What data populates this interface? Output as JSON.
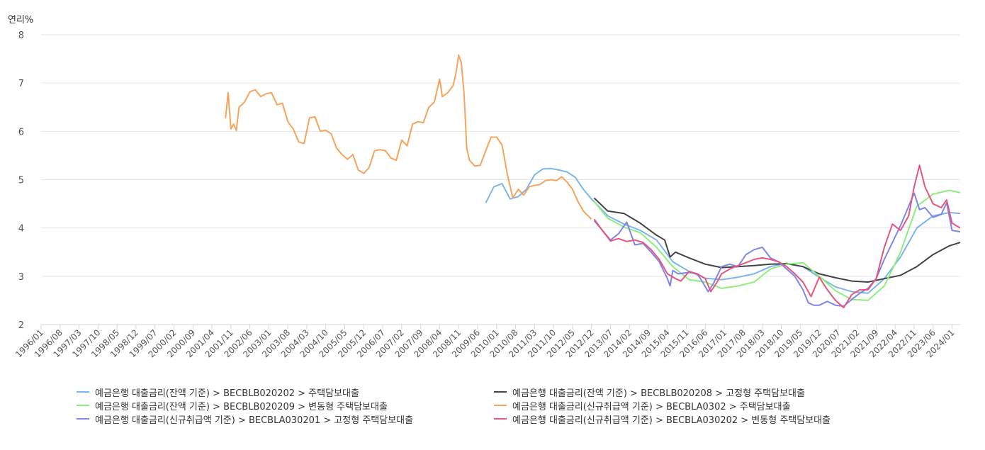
{
  "chart_data": {
    "type": "line",
    "ylabel": "연리%",
    "ylim": [
      2,
      8
    ],
    "yticks": [
      2,
      3,
      4,
      5,
      6,
      7,
      8
    ],
    "xlim": [
      "1996-01",
      "2024-04"
    ],
    "xticks": [
      "1996/01",
      "1996/08",
      "1997/03",
      "1997/10",
      "1998/05",
      "1998/12",
      "1999/07",
      "2000/02",
      "2000/09",
      "2001/04",
      "2001/11",
      "2002/06",
      "2003/01",
      "2003/08",
      "2004/03",
      "2004/10",
      "2005/05",
      "2005/12",
      "2006/07",
      "2007/02",
      "2007/09",
      "2008/04",
      "2008/11",
      "2009/06",
      "2010/01",
      "2010/08",
      "2011/03",
      "2011/10",
      "2012/05",
      "2012/12",
      "2013/07",
      "2014/02",
      "2014/09",
      "2015/04",
      "2015/11",
      "2016/06",
      "2017/01",
      "2017/08",
      "2018/03",
      "2018/10",
      "2019/05",
      "2019/12",
      "2020/07",
      "2021/02",
      "2021/09",
      "2022/04",
      "2022/11",
      "2023/06",
      "2024/01"
    ],
    "grid": true,
    "legend": "bottom",
    "series": [
      {
        "name": "예금은행 대출금리(잔액 기준) > BECBLB020202 > 주택담보대출",
        "color": "#7cb5ec",
        "points": [
          [
            "2009-09",
            4.52
          ],
          [
            "2009-12",
            4.85
          ],
          [
            "2010-03",
            4.92
          ],
          [
            "2010-06",
            4.6
          ],
          [
            "2010-09",
            4.65
          ],
          [
            "2010-12",
            4.8
          ],
          [
            "2011-03",
            5.1
          ],
          [
            "2011-06",
            5.22
          ],
          [
            "2011-09",
            5.23
          ],
          [
            "2011-12",
            5.2
          ],
          [
            "2012-03",
            5.16
          ],
          [
            "2012-06",
            5.05
          ],
          [
            "2012-09",
            4.8
          ],
          [
            "2012-12",
            4.6
          ],
          [
            "2013-06",
            4.25
          ],
          [
            "2013-12",
            4.08
          ],
          [
            "2014-06",
            3.95
          ],
          [
            "2014-12",
            3.75
          ],
          [
            "2015-06",
            3.3
          ],
          [
            "2015-12",
            3.1
          ],
          [
            "2016-06",
            2.96
          ],
          [
            "2016-12",
            2.93
          ],
          [
            "2017-06",
            2.98
          ],
          [
            "2017-12",
            3.05
          ],
          [
            "2018-06",
            3.2
          ],
          [
            "2018-12",
            3.27
          ],
          [
            "2019-06",
            3.2
          ],
          [
            "2019-12",
            2.98
          ],
          [
            "2020-06",
            2.78
          ],
          [
            "2020-12",
            2.68
          ],
          [
            "2021-06",
            2.65
          ],
          [
            "2021-12",
            2.95
          ],
          [
            "2022-06",
            3.4
          ],
          [
            "2022-12",
            4.0
          ],
          [
            "2023-06",
            4.25
          ],
          [
            "2023-12",
            4.32
          ],
          [
            "2024-04",
            4.3
          ]
        ]
      },
      {
        "name": "예금은행 대출금리(잔액 기준) > BECBLB020208 > 고정형 주택담보대출",
        "color": "#434348",
        "points": [
          [
            "2013-01",
            4.62
          ],
          [
            "2013-06",
            4.35
          ],
          [
            "2013-12",
            4.3
          ],
          [
            "2014-06",
            4.1
          ],
          [
            "2014-12",
            3.85
          ],
          [
            "2015-03",
            3.75
          ],
          [
            "2015-05",
            3.4
          ],
          [
            "2015-07",
            3.5
          ],
          [
            "2015-12",
            3.38
          ],
          [
            "2016-06",
            3.25
          ],
          [
            "2016-12",
            3.18
          ],
          [
            "2017-06",
            3.2
          ],
          [
            "2017-12",
            3.22
          ],
          [
            "2018-06",
            3.25
          ],
          [
            "2018-12",
            3.26
          ],
          [
            "2019-06",
            3.2
          ],
          [
            "2019-12",
            3.05
          ],
          [
            "2020-06",
            2.97
          ],
          [
            "2020-12",
            2.9
          ],
          [
            "2021-06",
            2.88
          ],
          [
            "2021-12",
            2.95
          ],
          [
            "2022-06",
            3.02
          ],
          [
            "2022-12",
            3.2
          ],
          [
            "2023-06",
            3.45
          ],
          [
            "2023-12",
            3.63
          ],
          [
            "2024-04",
            3.7
          ]
        ]
      },
      {
        "name": "예금은행 대출금리(잔액 기준) > BECBLB020209 > 변동형 주택담보대출",
        "color": "#90ed7d",
        "points": [
          [
            "2013-01",
            4.55
          ],
          [
            "2013-06",
            4.2
          ],
          [
            "2013-12",
            4.02
          ],
          [
            "2014-06",
            3.9
          ],
          [
            "2014-12",
            3.6
          ],
          [
            "2015-06",
            3.2
          ],
          [
            "2015-12",
            2.93
          ],
          [
            "2016-06",
            2.88
          ],
          [
            "2016-12",
            2.75
          ],
          [
            "2017-06",
            2.8
          ],
          [
            "2017-12",
            2.88
          ],
          [
            "2018-06",
            3.15
          ],
          [
            "2018-12",
            3.25
          ],
          [
            "2019-06",
            3.28
          ],
          [
            "2019-12",
            3.0
          ],
          [
            "2020-06",
            2.7
          ],
          [
            "2020-12",
            2.52
          ],
          [
            "2021-06",
            2.5
          ],
          [
            "2021-12",
            2.8
          ],
          [
            "2022-06",
            3.5
          ],
          [
            "2022-12",
            4.45
          ],
          [
            "2023-06",
            4.7
          ],
          [
            "2023-12",
            4.78
          ],
          [
            "2024-04",
            4.73
          ]
        ]
      },
      {
        "name": "예금은행 대출금리(신규취급액 기준) > BECBLA0302 > 주택담보대출",
        "color": "#f7a35c",
        "points": [
          [
            "2001-09",
            6.27
          ],
          [
            "2001-10",
            6.8
          ],
          [
            "2001-11",
            6.05
          ],
          [
            "2001-12",
            6.15
          ],
          [
            "2002-01",
            6.02
          ],
          [
            "2002-02",
            6.5
          ],
          [
            "2002-04",
            6.6
          ],
          [
            "2002-06",
            6.82
          ],
          [
            "2002-08",
            6.86
          ],
          [
            "2002-10",
            6.72
          ],
          [
            "2002-12",
            6.78
          ],
          [
            "2003-02",
            6.8
          ],
          [
            "2003-04",
            6.55
          ],
          [
            "2003-06",
            6.58
          ],
          [
            "2003-08",
            6.2
          ],
          [
            "2003-10",
            6.05
          ],
          [
            "2003-12",
            5.78
          ],
          [
            "2004-02",
            5.75
          ],
          [
            "2004-04",
            6.28
          ],
          [
            "2004-06",
            6.3
          ],
          [
            "2004-08",
            6.0
          ],
          [
            "2004-10",
            6.02
          ],
          [
            "2004-12",
            5.95
          ],
          [
            "2005-02",
            5.65
          ],
          [
            "2005-04",
            5.52
          ],
          [
            "2005-06",
            5.42
          ],
          [
            "2005-08",
            5.52
          ],
          [
            "2005-10",
            5.2
          ],
          [
            "2005-12",
            5.13
          ],
          [
            "2006-02",
            5.25
          ],
          [
            "2006-04",
            5.6
          ],
          [
            "2006-06",
            5.62
          ],
          [
            "2006-08",
            5.6
          ],
          [
            "2006-10",
            5.45
          ],
          [
            "2006-12",
            5.4
          ],
          [
            "2007-02",
            5.82
          ],
          [
            "2007-04",
            5.7
          ],
          [
            "2007-06",
            6.15
          ],
          [
            "2007-08",
            6.2
          ],
          [
            "2007-10",
            6.18
          ],
          [
            "2007-12",
            6.5
          ],
          [
            "2008-02",
            6.6
          ],
          [
            "2008-04",
            7.08
          ],
          [
            "2008-05",
            6.72
          ],
          [
            "2008-07",
            6.8
          ],
          [
            "2008-09",
            6.95
          ],
          [
            "2008-10",
            7.2
          ],
          [
            "2008-11",
            7.58
          ],
          [
            "2008-12",
            7.42
          ],
          [
            "2009-01",
            6.8
          ],
          [
            "2009-02",
            5.65
          ],
          [
            "2009-03",
            5.4
          ],
          [
            "2009-05",
            5.28
          ],
          [
            "2009-07",
            5.3
          ],
          [
            "2009-09",
            5.6
          ],
          [
            "2009-11",
            5.88
          ],
          [
            "2010-01",
            5.88
          ],
          [
            "2010-03",
            5.72
          ],
          [
            "2010-05",
            5.1
          ],
          [
            "2010-07",
            4.62
          ],
          [
            "2010-09",
            4.8
          ],
          [
            "2010-11",
            4.68
          ],
          [
            "2011-01",
            4.85
          ],
          [
            "2011-03",
            4.88
          ],
          [
            "2011-05",
            4.9
          ],
          [
            "2011-07",
            4.98
          ],
          [
            "2011-09",
            5.0
          ],
          [
            "2011-11",
            4.98
          ],
          [
            "2012-01",
            5.06
          ],
          [
            "2012-03",
            4.95
          ],
          [
            "2012-05",
            4.8
          ],
          [
            "2012-07",
            4.55
          ],
          [
            "2012-09",
            4.35
          ],
          [
            "2012-12",
            4.18
          ]
        ]
      },
      {
        "name": "예금은행 대출금리(신규취급액 기준) > BECBLA030201 > 고정형 주택담보대출",
        "color": "#8085e9",
        "points": [
          [
            "2013-01",
            4.15
          ],
          [
            "2013-04",
            3.95
          ],
          [
            "2013-07",
            3.75
          ],
          [
            "2013-10",
            3.88
          ],
          [
            "2014-01",
            4.12
          ],
          [
            "2014-04",
            3.65
          ],
          [
            "2014-07",
            3.68
          ],
          [
            "2014-10",
            3.5
          ],
          [
            "2015-01",
            3.3
          ],
          [
            "2015-04",
            2.95
          ],
          [
            "2015-05",
            2.8
          ],
          [
            "2015-06",
            3.12
          ],
          [
            "2015-08",
            3.05
          ],
          [
            "2015-12",
            3.08
          ],
          [
            "2016-03",
            3.05
          ],
          [
            "2016-05",
            2.88
          ],
          [
            "2016-07",
            2.68
          ],
          [
            "2016-09",
            2.85
          ],
          [
            "2016-12",
            3.2
          ],
          [
            "2017-03",
            3.25
          ],
          [
            "2017-06",
            3.2
          ],
          [
            "2017-09",
            3.45
          ],
          [
            "2017-12",
            3.55
          ],
          [
            "2018-03",
            3.6
          ],
          [
            "2018-06",
            3.38
          ],
          [
            "2018-09",
            3.3
          ],
          [
            "2018-12",
            3.15
          ],
          [
            "2019-03",
            3.0
          ],
          [
            "2019-06",
            2.72
          ],
          [
            "2019-08",
            2.45
          ],
          [
            "2019-10",
            2.4
          ],
          [
            "2019-12",
            2.4
          ],
          [
            "2020-03",
            2.48
          ],
          [
            "2020-06",
            2.4
          ],
          [
            "2020-09",
            2.38
          ],
          [
            "2020-12",
            2.52
          ],
          [
            "2021-03",
            2.65
          ],
          [
            "2021-06",
            2.75
          ],
          [
            "2021-09",
            2.95
          ],
          [
            "2021-12",
            3.35
          ],
          [
            "2022-03",
            3.7
          ],
          [
            "2022-06",
            4.05
          ],
          [
            "2022-09",
            4.45
          ],
          [
            "2022-11",
            4.72
          ],
          [
            "2023-01",
            4.38
          ],
          [
            "2023-03",
            4.42
          ],
          [
            "2023-06",
            4.22
          ],
          [
            "2023-09",
            4.28
          ],
          [
            "2023-11",
            4.52
          ],
          [
            "2024-01",
            3.95
          ],
          [
            "2024-04",
            3.92
          ]
        ]
      },
      {
        "name": "예금은행 대출금리(신규취급액 기준) > BECBLA030202 > 변동형 주택담보대출",
        "color": "#e4567c",
        "points": [
          [
            "2013-01",
            4.18
          ],
          [
            "2013-04",
            3.95
          ],
          [
            "2013-07",
            3.73
          ],
          [
            "2013-10",
            3.78
          ],
          [
            "2014-01",
            3.72
          ],
          [
            "2014-04",
            3.75
          ],
          [
            "2014-07",
            3.7
          ],
          [
            "2014-10",
            3.55
          ],
          [
            "2015-01",
            3.35
          ],
          [
            "2015-04",
            3.05
          ],
          [
            "2015-07",
            2.95
          ],
          [
            "2015-09",
            2.9
          ],
          [
            "2015-12",
            3.1
          ],
          [
            "2016-03",
            3.05
          ],
          [
            "2016-06",
            2.95
          ],
          [
            "2016-08",
            2.68
          ],
          [
            "2016-10",
            2.85
          ],
          [
            "2016-12",
            3.05
          ],
          [
            "2017-03",
            3.15
          ],
          [
            "2017-06",
            3.22
          ],
          [
            "2017-09",
            3.28
          ],
          [
            "2017-12",
            3.35
          ],
          [
            "2018-03",
            3.38
          ],
          [
            "2018-06",
            3.35
          ],
          [
            "2018-09",
            3.3
          ],
          [
            "2018-12",
            3.2
          ],
          [
            "2019-03",
            3.05
          ],
          [
            "2019-06",
            2.88
          ],
          [
            "2019-09",
            2.58
          ],
          [
            "2019-12",
            2.98
          ],
          [
            "2020-03",
            2.72
          ],
          [
            "2020-06",
            2.5
          ],
          [
            "2020-09",
            2.35
          ],
          [
            "2020-12",
            2.62
          ],
          [
            "2021-03",
            2.72
          ],
          [
            "2021-06",
            2.72
          ],
          [
            "2021-09",
            2.95
          ],
          [
            "2021-12",
            3.6
          ],
          [
            "2022-03",
            4.08
          ],
          [
            "2022-06",
            3.95
          ],
          [
            "2022-09",
            4.25
          ],
          [
            "2022-11",
            4.85
          ],
          [
            "2023-01",
            5.3
          ],
          [
            "2023-03",
            4.85
          ],
          [
            "2023-06",
            4.5
          ],
          [
            "2023-09",
            4.42
          ],
          [
            "2023-11",
            4.58
          ],
          [
            "2024-01",
            4.1
          ],
          [
            "2024-04",
            4.0
          ]
        ]
      }
    ]
  }
}
